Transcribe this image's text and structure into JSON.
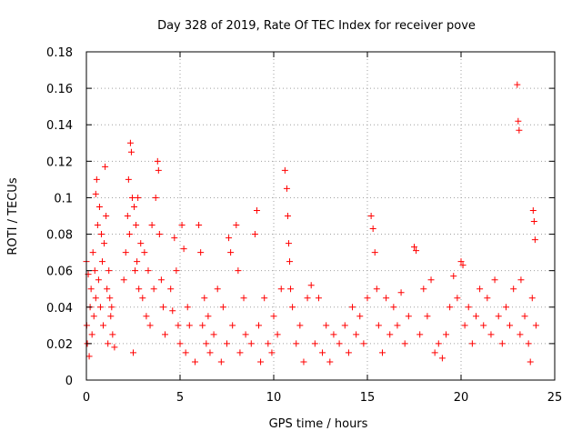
{
  "chart_data": {
    "type": "scatter",
    "title": "Day 328 of 2019, Rate Of TEC Index for receiver pove",
    "xlabel": "GPS time / hours",
    "ylabel": "ROTI / TECUs",
    "xlim": [
      0,
      25
    ],
    "ylim": [
      0,
      0.18
    ],
    "xticks": [
      "0",
      "5",
      "10",
      "15",
      "20",
      "25"
    ],
    "yticks": [
      "0",
      "0.02",
      "0.04",
      "0.06",
      "0.08",
      "0.1",
      "0.12",
      "0.14",
      "0.16",
      "0.18"
    ],
    "grid": true,
    "marker": "+",
    "color": "#ff0000",
    "series": [
      {
        "values": [
          [
            0.0,
            0.065
          ],
          [
            0.02,
            0.03
          ],
          [
            0.05,
            0.02
          ],
          [
            0.1,
            0.058
          ],
          [
            0.15,
            0.013
          ],
          [
            0.2,
            0.04
          ],
          [
            0.25,
            0.05
          ],
          [
            0.3,
            0.025
          ],
          [
            0.35,
            0.07
          ],
          [
            0.4,
            0.035
          ],
          [
            0.45,
            0.06
          ],
          [
            0.5,
            0.045
          ],
          [
            0.5,
            0.102
          ],
          [
            0.55,
            0.11
          ],
          [
            0.6,
            0.085
          ],
          [
            0.65,
            0.055
          ],
          [
            0.7,
            0.095
          ],
          [
            0.75,
            0.04
          ],
          [
            0.8,
            0.08
          ],
          [
            0.85,
            0.065
          ],
          [
            0.9,
            0.03
          ],
          [
            0.95,
            0.075
          ],
          [
            1.0,
            0.117
          ],
          [
            1.05,
            0.09
          ],
          [
            1.1,
            0.05
          ],
          [
            1.15,
            0.02
          ],
          [
            1.2,
            0.06
          ],
          [
            1.25,
            0.045
          ],
          [
            1.3,
            0.035
          ],
          [
            1.35,
            0.04
          ],
          [
            1.4,
            0.025
          ],
          [
            1.5,
            0.018
          ],
          [
            2.0,
            0.055
          ],
          [
            2.1,
            0.07
          ],
          [
            2.2,
            0.09
          ],
          [
            2.25,
            0.11
          ],
          [
            2.3,
            0.08
          ],
          [
            2.35,
            0.13
          ],
          [
            2.4,
            0.125
          ],
          [
            2.45,
            0.1
          ],
          [
            2.5,
            0.015
          ],
          [
            2.55,
            0.095
          ],
          [
            2.6,
            0.06
          ],
          [
            2.65,
            0.085
          ],
          [
            2.7,
            0.065
          ],
          [
            2.75,
            0.1
          ],
          [
            2.8,
            0.05
          ],
          [
            2.9,
            0.075
          ],
          [
            3.0,
            0.045
          ],
          [
            3.1,
            0.07
          ],
          [
            3.2,
            0.035
          ],
          [
            3.3,
            0.06
          ],
          [
            3.4,
            0.03
          ],
          [
            3.5,
            0.085
          ],
          [
            3.6,
            0.05
          ],
          [
            3.7,
            0.1
          ],
          [
            3.8,
            0.12
          ],
          [
            3.85,
            0.115
          ],
          [
            3.9,
            0.08
          ],
          [
            4.0,
            0.055
          ],
          [
            4.1,
            0.04
          ],
          [
            4.2,
            0.025
          ],
          [
            4.5,
            0.05
          ],
          [
            4.6,
            0.038
          ],
          [
            4.7,
            0.078
          ],
          [
            4.8,
            0.06
          ],
          [
            4.9,
            0.03
          ],
          [
            5.0,
            0.02
          ],
          [
            5.1,
            0.085
          ],
          [
            5.2,
            0.072
          ],
          [
            5.3,
            0.015
          ],
          [
            5.4,
            0.04
          ],
          [
            5.5,
            0.03
          ],
          [
            5.8,
            0.01
          ],
          [
            6.0,
            0.085
          ],
          [
            6.1,
            0.07
          ],
          [
            6.2,
            0.03
          ],
          [
            6.3,
            0.045
          ],
          [
            6.4,
            0.02
          ],
          [
            6.5,
            0.035
          ],
          [
            6.6,
            0.015
          ],
          [
            6.8,
            0.025
          ],
          [
            7.0,
            0.05
          ],
          [
            7.2,
            0.01
          ],
          [
            7.3,
            0.04
          ],
          [
            7.5,
            0.02
          ],
          [
            7.6,
            0.078
          ],
          [
            7.7,
            0.07
          ],
          [
            7.8,
            0.03
          ],
          [
            8.0,
            0.085
          ],
          [
            8.1,
            0.06
          ],
          [
            8.2,
            0.015
          ],
          [
            8.4,
            0.045
          ],
          [
            8.5,
            0.025
          ],
          [
            8.8,
            0.02
          ],
          [
            9.0,
            0.08
          ],
          [
            9.1,
            0.093
          ],
          [
            9.2,
            0.03
          ],
          [
            9.3,
            0.01
          ],
          [
            9.5,
            0.045
          ],
          [
            9.7,
            0.02
          ],
          [
            9.9,
            0.015
          ],
          [
            10.0,
            0.035
          ],
          [
            10.2,
            0.025
          ],
          [
            10.4,
            0.05
          ],
          [
            10.6,
            0.115
          ],
          [
            10.7,
            0.105
          ],
          [
            10.75,
            0.09
          ],
          [
            10.8,
            0.075
          ],
          [
            10.85,
            0.065
          ],
          [
            10.9,
            0.05
          ],
          [
            11.0,
            0.04
          ],
          [
            11.2,
            0.02
          ],
          [
            11.4,
            0.03
          ],
          [
            11.6,
            0.01
          ],
          [
            11.8,
            0.045
          ],
          [
            12.0,
            0.052
          ],
          [
            12.2,
            0.02
          ],
          [
            12.4,
            0.045
          ],
          [
            12.6,
            0.015
          ],
          [
            12.8,
            0.03
          ],
          [
            13.0,
            0.01
          ],
          [
            13.2,
            0.025
          ],
          [
            13.5,
            0.02
          ],
          [
            13.8,
            0.03
          ],
          [
            14.0,
            0.015
          ],
          [
            14.2,
            0.04
          ],
          [
            14.4,
            0.025
          ],
          [
            14.6,
            0.035
          ],
          [
            14.8,
            0.02
          ],
          [
            15.0,
            0.045
          ],
          [
            15.2,
            0.09
          ],
          [
            15.3,
            0.083
          ],
          [
            15.4,
            0.07
          ],
          [
            15.5,
            0.05
          ],
          [
            15.6,
            0.03
          ],
          [
            15.8,
            0.015
          ],
          [
            16.0,
            0.045
          ],
          [
            16.2,
            0.025
          ],
          [
            16.4,
            0.04
          ],
          [
            16.6,
            0.03
          ],
          [
            16.8,
            0.048
          ],
          [
            17.0,
            0.02
          ],
          [
            17.2,
            0.035
          ],
          [
            17.5,
            0.073
          ],
          [
            17.6,
            0.071
          ],
          [
            17.8,
            0.025
          ],
          [
            18.0,
            0.05
          ],
          [
            18.2,
            0.035
          ],
          [
            18.4,
            0.055
          ],
          [
            18.6,
            0.015
          ],
          [
            18.8,
            0.02
          ],
          [
            19.0,
            0.012
          ],
          [
            19.2,
            0.025
          ],
          [
            19.4,
            0.04
          ],
          [
            19.6,
            0.057
          ],
          [
            19.8,
            0.045
          ],
          [
            20.0,
            0.065
          ],
          [
            20.1,
            0.063
          ],
          [
            20.2,
            0.03
          ],
          [
            20.4,
            0.04
          ],
          [
            20.6,
            0.02
          ],
          [
            20.8,
            0.035
          ],
          [
            21.0,
            0.05
          ],
          [
            21.2,
            0.03
          ],
          [
            21.4,
            0.045
          ],
          [
            21.6,
            0.025
          ],
          [
            21.8,
            0.055
          ],
          [
            22.0,
            0.035
          ],
          [
            22.2,
            0.02
          ],
          [
            22.4,
            0.04
          ],
          [
            22.6,
            0.03
          ],
          [
            22.8,
            0.05
          ],
          [
            23.0,
            0.162
          ],
          [
            23.05,
            0.142
          ],
          [
            23.1,
            0.137
          ],
          [
            23.15,
            0.025
          ],
          [
            23.2,
            0.055
          ],
          [
            23.4,
            0.035
          ],
          [
            23.6,
            0.02
          ],
          [
            23.7,
            0.01
          ],
          [
            23.8,
            0.045
          ],
          [
            23.85,
            0.093
          ],
          [
            23.9,
            0.087
          ],
          [
            23.95,
            0.077
          ],
          [
            24.0,
            0.03
          ]
        ]
      }
    ]
  }
}
